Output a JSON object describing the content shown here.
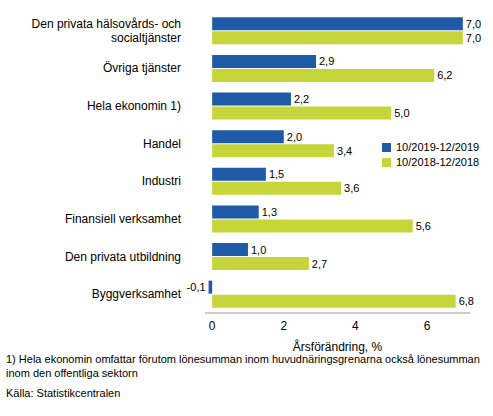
{
  "chart_data": {
    "type": "bar",
    "orientation": "horizontal",
    "categories": [
      "Den privata hälsovårds- och socialtjänster",
      "Övriga tjänster",
      "Hela ekonomin 1)",
      "Handel",
      "Industri",
      "Finansiell verksamhet",
      "Den privata utbildning",
      "Byggverksamhet"
    ],
    "series": [
      {
        "name": "10/2019-12/2019",
        "color": "#1f5aa6",
        "values": [
          7.0,
          2.9,
          2.2,
          2.0,
          1.5,
          1.3,
          1.0,
          -0.1
        ],
        "value_labels": [
          "7,0",
          "2,9",
          "2,2",
          "2,0",
          "1,5",
          "1,3",
          "1,0",
          "-0,1"
        ]
      },
      {
        "name": "10/2018-12/2018",
        "color": "#c5d53a",
        "values": [
          7.0,
          6.2,
          5.0,
          3.4,
          3.6,
          5.6,
          2.7,
          6.8
        ],
        "value_labels": [
          "7,0",
          "6,2",
          "5,0",
          "3,4",
          "3,6",
          "5,6",
          "2,7",
          "6,8"
        ]
      }
    ],
    "x_label": "Årsförändring, %",
    "xlim": [
      -0.2,
      7.2
    ],
    "xticks": [
      0,
      2,
      4,
      6
    ],
    "grid": false,
    "legend": "right",
    "data_labels": true,
    "annotations": [
      "1) Hela ekonomin omfattar förutom lönesumman inom huvudnäringsgrenarna också lönesumman inom den offentliga sektorn",
      "Källa: Statistikcentralen"
    ]
  }
}
